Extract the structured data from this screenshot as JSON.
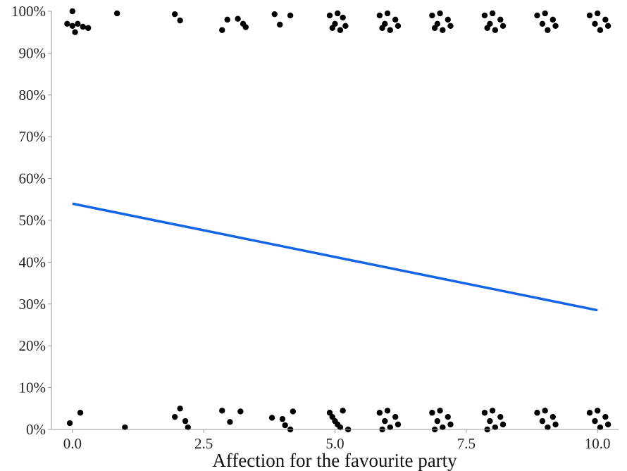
{
  "chart_data": {
    "type": "scatter",
    "title": "",
    "xlabel": "Affection for the favourite party",
    "ylabel": "",
    "xlim": [
      -0.4,
      10.4
    ],
    "ylim": [
      0,
      1
    ],
    "x_ticks": [
      {
        "value": 0.0,
        "label": "0.0"
      },
      {
        "value": 2.5,
        "label": "2.5"
      },
      {
        "value": 5.0,
        "label": "5.0"
      },
      {
        "value": 7.5,
        "label": "7.5"
      },
      {
        "value": 10.0,
        "label": "10.0"
      }
    ],
    "y_ticks": [
      {
        "value": 0.0,
        "label": "0%"
      },
      {
        "value": 0.1,
        "label": "10%"
      },
      {
        "value": 0.2,
        "label": "20%"
      },
      {
        "value": 0.3,
        "label": "30%"
      },
      {
        "value": 0.4,
        "label": "40%"
      },
      {
        "value": 0.5,
        "label": "50%"
      },
      {
        "value": 0.6,
        "label": "60%"
      },
      {
        "value": 0.7,
        "label": "70%"
      },
      {
        "value": 0.8,
        "label": "80%"
      },
      {
        "value": 0.9,
        "label": "90%"
      },
      {
        "value": 1.0,
        "label": "100%"
      }
    ],
    "grid": false,
    "legend": "none",
    "colors": {
      "points": "#000000",
      "fit_line": "#1464e6",
      "axis": "#9a9a9a"
    },
    "fit_line": {
      "x": [
        0.0,
        10.0
      ],
      "y": [
        0.54,
        0.285
      ]
    },
    "points": [
      {
        "x": -0.1,
        "y": 0.97
      },
      {
        "x": 0.0,
        "y": 0.965
      },
      {
        "x": 0.05,
        "y": 0.95
      },
      {
        "x": 0.1,
        "y": 0.97
      },
      {
        "x": 0.2,
        "y": 0.963
      },
      {
        "x": 0.3,
        "y": 0.96
      },
      {
        "x": 0.0,
        "y": 1.0
      },
      {
        "x": 0.85,
        "y": 0.995
      },
      {
        "x": 1.95,
        "y": 0.993
      },
      {
        "x": 2.05,
        "y": 0.978
      },
      {
        "x": 2.85,
        "y": 0.955
      },
      {
        "x": 2.95,
        "y": 0.98
      },
      {
        "x": 3.15,
        "y": 0.982
      },
      {
        "x": 3.25,
        "y": 0.97
      },
      {
        "x": 3.3,
        "y": 0.962
      },
      {
        "x": 3.85,
        "y": 0.993
      },
      {
        "x": 3.95,
        "y": 0.968
      },
      {
        "x": 4.15,
        "y": 0.99
      },
      {
        "x": 4.9,
        "y": 0.99
      },
      {
        "x": 5.0,
        "y": 0.97
      },
      {
        "x": 5.1,
        "y": 0.955
      },
      {
        "x": 4.95,
        "y": 0.96
      },
      {
        "x": 5.15,
        "y": 0.985
      },
      {
        "x": 5.05,
        "y": 0.995
      },
      {
        "x": 5.2,
        "y": 0.965
      },
      {
        "x": 5.85,
        "y": 0.99
      },
      {
        "x": 5.95,
        "y": 0.97
      },
      {
        "x": 6.05,
        "y": 0.955
      },
      {
        "x": 6.15,
        "y": 0.98
      },
      {
        "x": 6.0,
        "y": 0.995
      },
      {
        "x": 6.2,
        "y": 0.965
      },
      {
        "x": 5.9,
        "y": 0.96
      },
      {
        "x": 6.85,
        "y": 0.99
      },
      {
        "x": 6.95,
        "y": 0.97
      },
      {
        "x": 7.05,
        "y": 0.955
      },
      {
        "x": 7.15,
        "y": 0.98
      },
      {
        "x": 7.0,
        "y": 0.995
      },
      {
        "x": 7.2,
        "y": 0.965
      },
      {
        "x": 6.9,
        "y": 0.96
      },
      {
        "x": 7.85,
        "y": 0.99
      },
      {
        "x": 7.95,
        "y": 0.97
      },
      {
        "x": 8.05,
        "y": 0.955
      },
      {
        "x": 8.15,
        "y": 0.98
      },
      {
        "x": 8.0,
        "y": 0.995
      },
      {
        "x": 8.2,
        "y": 0.965
      },
      {
        "x": 7.9,
        "y": 0.96
      },
      {
        "x": 8.85,
        "y": 0.99
      },
      {
        "x": 8.95,
        "y": 0.97
      },
      {
        "x": 9.05,
        "y": 0.955
      },
      {
        "x": 9.15,
        "y": 0.98
      },
      {
        "x": 9.0,
        "y": 0.995
      },
      {
        "x": 9.2,
        "y": 0.965
      },
      {
        "x": 9.85,
        "y": 0.99
      },
      {
        "x": 9.95,
        "y": 0.97
      },
      {
        "x": 10.05,
        "y": 0.955
      },
      {
        "x": 10.15,
        "y": 0.98
      },
      {
        "x": 10.0,
        "y": 0.995
      },
      {
        "x": 10.2,
        "y": 0.965
      },
      {
        "x": -0.05,
        "y": 0.015
      },
      {
        "x": 0.15,
        "y": 0.04
      },
      {
        "x": 1.0,
        "y": 0.005
      },
      {
        "x": 1.95,
        "y": 0.03
      },
      {
        "x": 2.05,
        "y": 0.05
      },
      {
        "x": 2.15,
        "y": 0.02
      },
      {
        "x": 2.2,
        "y": 0.005
      },
      {
        "x": 2.85,
        "y": 0.045
      },
      {
        "x": 3.0,
        "y": 0.018
      },
      {
        "x": 3.2,
        "y": 0.043
      },
      {
        "x": 3.8,
        "y": 0.028
      },
      {
        "x": 4.0,
        "y": 0.025
      },
      {
        "x": 4.05,
        "y": 0.01
      },
      {
        "x": 4.15,
        "y": 0.0
      },
      {
        "x": 4.2,
        "y": 0.043
      },
      {
        "x": 4.9,
        "y": 0.04
      },
      {
        "x": 5.0,
        "y": 0.02
      },
      {
        "x": 5.1,
        "y": 0.005
      },
      {
        "x": 4.95,
        "y": 0.03
      },
      {
        "x": 5.15,
        "y": 0.045
      },
      {
        "x": 5.05,
        "y": 0.012
      },
      {
        "x": 5.25,
        "y": 0.0
      },
      {
        "x": 5.85,
        "y": 0.04
      },
      {
        "x": 5.95,
        "y": 0.02
      },
      {
        "x": 6.05,
        "y": 0.005
      },
      {
        "x": 6.15,
        "y": 0.03
      },
      {
        "x": 6.0,
        "y": 0.045
      },
      {
        "x": 6.2,
        "y": 0.012
      },
      {
        "x": 5.9,
        "y": 0.0
      },
      {
        "x": 6.85,
        "y": 0.04
      },
      {
        "x": 6.95,
        "y": 0.02
      },
      {
        "x": 7.05,
        "y": 0.005
      },
      {
        "x": 7.15,
        "y": 0.03
      },
      {
        "x": 7.0,
        "y": 0.045
      },
      {
        "x": 7.2,
        "y": 0.012
      },
      {
        "x": 6.9,
        "y": 0.0
      },
      {
        "x": 7.85,
        "y": 0.04
      },
      {
        "x": 7.95,
        "y": 0.02
      },
      {
        "x": 8.05,
        "y": 0.005
      },
      {
        "x": 8.15,
        "y": 0.03
      },
      {
        "x": 8.0,
        "y": 0.045
      },
      {
        "x": 8.2,
        "y": 0.012
      },
      {
        "x": 7.9,
        "y": 0.0
      },
      {
        "x": 8.85,
        "y": 0.04
      },
      {
        "x": 8.95,
        "y": 0.02
      },
      {
        "x": 9.05,
        "y": 0.005
      },
      {
        "x": 9.15,
        "y": 0.03
      },
      {
        "x": 9.0,
        "y": 0.045
      },
      {
        "x": 9.2,
        "y": 0.012
      },
      {
        "x": 9.85,
        "y": 0.04
      },
      {
        "x": 9.95,
        "y": 0.02
      },
      {
        "x": 10.05,
        "y": 0.005
      },
      {
        "x": 10.15,
        "y": 0.03
      },
      {
        "x": 10.0,
        "y": 0.045
      },
      {
        "x": 10.2,
        "y": 0.012
      }
    ]
  }
}
